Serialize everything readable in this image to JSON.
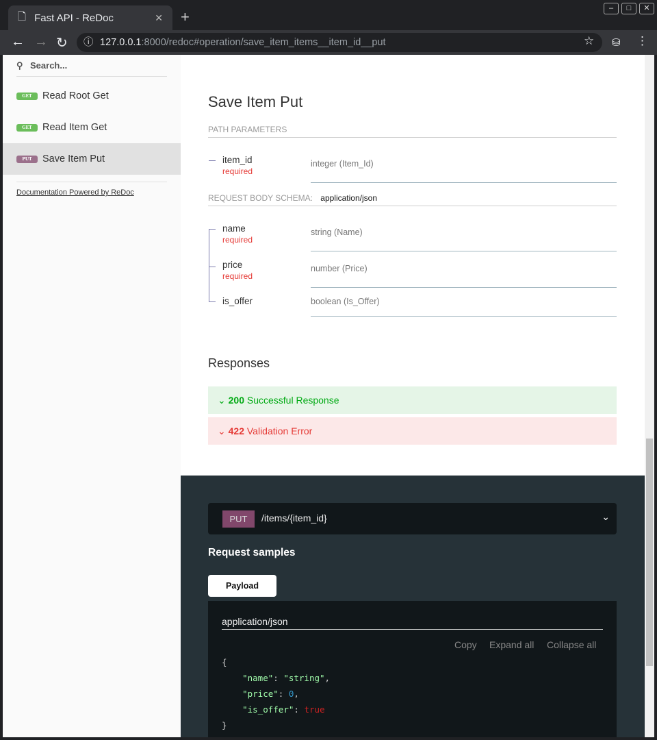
{
  "browser": {
    "tab_title": "Fast API - ReDoc",
    "url_host": "127.0.0.1",
    "url_rest": ":8000/redoc#operation/save_item_items__item_id__put"
  },
  "sidebar": {
    "search_placeholder": "Search...",
    "items": [
      {
        "method": "GET",
        "label": "Read Root Get",
        "color": "#6bbd5b"
      },
      {
        "method": "GET",
        "label": "Read Item Get",
        "color": "#6bbd5b"
      },
      {
        "method": "PUT",
        "label": "Save Item Put",
        "color": "#9b708b",
        "active": true
      }
    ],
    "powered": "Documentation Powered by ReDoc"
  },
  "main": {
    "title": "Save Item Put",
    "path_params_label": "PATH PARAMETERS",
    "path_params": [
      {
        "name": "item_id",
        "required": "required",
        "type": "integer (Item_Id)"
      }
    ],
    "body_label": "REQUEST BODY SCHEMA:",
    "body_type": "application/json",
    "body_params": [
      {
        "name": "name",
        "required": "required",
        "type": "string (Name)"
      },
      {
        "name": "price",
        "required": "required",
        "type": "number (Price)"
      },
      {
        "name": "is_offer",
        "type": "boolean (Is_Offer)"
      }
    ],
    "responses_title": "Responses",
    "responses": [
      {
        "code": "200",
        "label": "Successful Response",
        "color": "#00aa13",
        "bg": "#e5f5e7"
      },
      {
        "code": "422",
        "label": "Validation Error",
        "color": "#e53935",
        "bg": "#fce8e8"
      }
    ]
  },
  "right": {
    "method": "PUT",
    "path": "/items/{item_id}",
    "request_samples": "Request samples",
    "payload_tab": "Payload",
    "content_type": "application/json",
    "copy": "Copy",
    "expand": "Expand all",
    "collapse": "Collapse all",
    "code": {
      "open": "{",
      "k1": "\"name\"",
      "v1": "\"string\"",
      "k2": "\"price\"",
      "v2": "0",
      "k3": "\"is_offer\"",
      "v3": "true",
      "close": "}"
    }
  }
}
